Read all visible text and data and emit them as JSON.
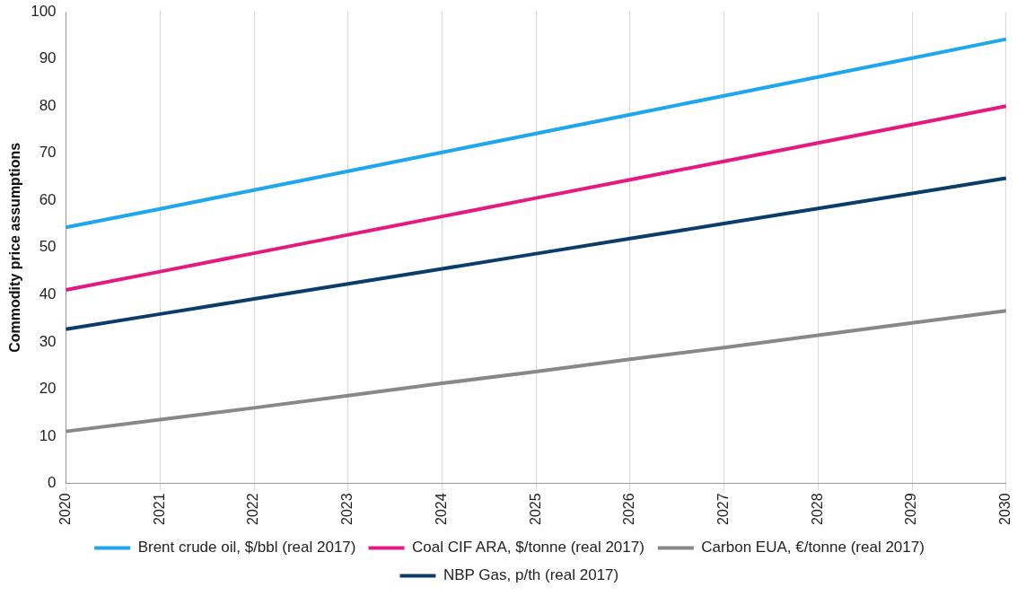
{
  "chart_data": {
    "type": "line",
    "ylabel": "Commodity price assumptions",
    "categories": [
      "2020",
      "2021",
      "2022",
      "2023",
      "2024",
      "2025",
      "2026",
      "2027",
      "2028",
      "2029",
      "2030"
    ],
    "ylim": [
      0,
      100
    ],
    "yticks": [
      0,
      10,
      20,
      30,
      40,
      50,
      60,
      70,
      80,
      90,
      100
    ],
    "grid": "x",
    "legend": "bottom",
    "marker": "none",
    "line_style": "solid",
    "series": [
      {
        "name": "Brent crude oil, $/bbl (real 2017)",
        "color": "#1ea7ef",
        "values": [
          54.3,
          58.2,
          62.2,
          66.2,
          70.2,
          74.2,
          78.2,
          82.2,
          86.2,
          90.2,
          94.2
        ]
      },
      {
        "name": "Coal CIF ARA, $/tonne (real 2017)",
        "color": "#e5197f",
        "values": [
          41,
          44.9,
          48.8,
          52.7,
          56.6,
          60.5,
          64.4,
          68.3,
          72.2,
          76.1,
          80
        ]
      },
      {
        "name": "Carbon EUA, €/tonne (real 2017)",
        "color": "#888888",
        "values": [
          11,
          13.5,
          16,
          18.6,
          21.2,
          23.7,
          26.3,
          28.8,
          31.4,
          34,
          36.6
        ]
      },
      {
        "name": "NBP Gas, p/th (real 2017)",
        "color": "#0b3d6b",
        "values": [
          32.7,
          35.9,
          39.1,
          42.3,
          45.5,
          48.7,
          51.9,
          55.1,
          58.3,
          61.5,
          64.7
        ]
      }
    ]
  }
}
